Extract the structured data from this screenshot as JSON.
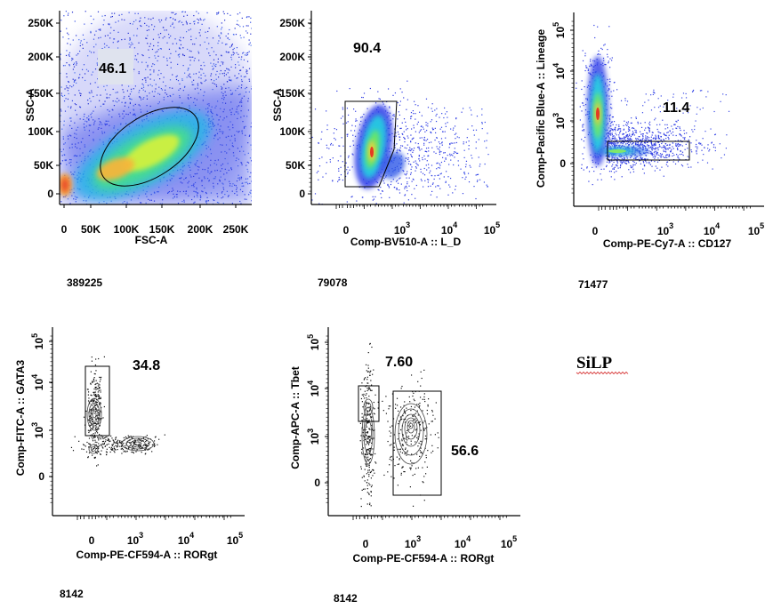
{
  "sample_label": "SiLP",
  "chart_data": [
    {
      "type": "scatter",
      "xlabel": "FSC-A",
      "ylabel": "SSC-A",
      "x_ticks": [
        "0",
        "50K",
        "100K",
        "150K",
        "200K",
        "250K"
      ],
      "y_ticks": [
        "0",
        "50K",
        "100K",
        "150K",
        "200K",
        "250K"
      ],
      "gate_percent": "46.1",
      "event_count": "389225"
    },
    {
      "type": "scatter",
      "xlabel": "Comp-BV510-A :: L_D",
      "ylabel": "SSC-A",
      "x_ticks": [
        "0",
        "10^3",
        "10^4",
        "10^5"
      ],
      "y_ticks": [
        "0",
        "50K",
        "100K",
        "150K",
        "200K",
        "250K"
      ],
      "gate_percent": "90.4",
      "event_count": "79078"
    },
    {
      "type": "scatter",
      "xlabel": "Comp-PE-Cy7-A :: CD127",
      "ylabel": "Comp-Pacific Blue-A :: Lineage",
      "x_ticks": [
        "0",
        "10^3",
        "10^4",
        "10^5"
      ],
      "y_ticks": [
        "0",
        "10^3",
        "10^4",
        "10^5"
      ],
      "gate_percent": "11.4",
      "event_count": "71477"
    },
    {
      "type": "scatter",
      "xlabel": "Comp-PE-CF594-A :: RORgt",
      "ylabel": "Comp-FITC-A :: GATA3",
      "x_ticks": [
        "0",
        "10^3",
        "10^4",
        "10^5"
      ],
      "y_ticks": [
        "0",
        "10^3",
        "10^4",
        "10^5"
      ],
      "gate_percent": "34.8",
      "event_count": "8142"
    },
    {
      "type": "scatter",
      "xlabel": "Comp-PE-CF594-A :: RORgt",
      "ylabel": "Comp-APC-A :: Tbet",
      "x_ticks": [
        "0",
        "10^3",
        "10^4",
        "10^5"
      ],
      "y_ticks": [
        "0",
        "10^3",
        "10^4",
        "10^5"
      ],
      "gate_percent": "7.60",
      "gate_percent_2": "56.6",
      "event_count": "8142"
    }
  ]
}
